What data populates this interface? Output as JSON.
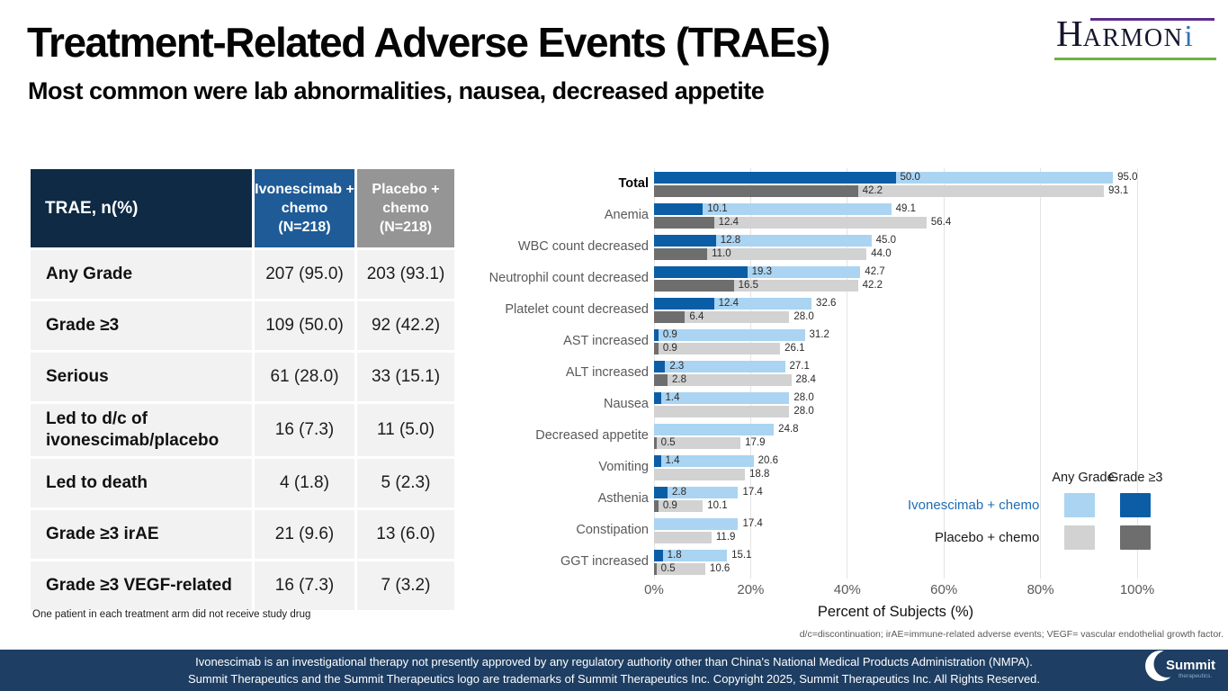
{
  "header": {
    "title": "Treatment-Related Adverse Events (TRAEs)",
    "subtitle": "Most common were lab abnormalities, nausea, decreased appetite",
    "harmoni_logo": {
      "h": "H",
      "armon": "ARMON",
      "i": "i",
      "purple": "#5b2d8e",
      "green": "#6cb33f",
      "i_color": "#2e74b5"
    }
  },
  "table": {
    "header": {
      "col0": "TRAE, n(%)",
      "col1": "Ivonescimab +\nchemo\n(N=218)",
      "col2": "Placebo +\nchemo\n(N=218)"
    },
    "rows": [
      {
        "label": "Any Grade",
        "ivonescimab": "207 (95.0)",
        "placebo": "203 (93.1)"
      },
      {
        "label": "Grade ≥3",
        "ivonescimab": "109 (50.0)",
        "placebo": "92 (42.2)"
      },
      {
        "label": "Serious",
        "ivonescimab": "61 (28.0)",
        "placebo": "33 (15.1)"
      },
      {
        "label": "Led to d/c of ivonescimab/placebo",
        "ivonescimab": "16 (7.3)",
        "placebo": "11 (5.0)"
      },
      {
        "label": "Led to death",
        "ivonescimab": "4 (1.8)",
        "placebo": "5 (2.3)"
      },
      {
        "label": "Grade ≥3 irAE",
        "ivonescimab": "21 (9.6)",
        "placebo": "13 (6.0)"
      },
      {
        "label": "Grade ≥3 VEGF-related",
        "ivonescimab": "16 (7.3)",
        "placebo": "7 (3.2)"
      }
    ],
    "footnote": "One patient in each treatment arm did not receive study drug"
  },
  "chart_data": {
    "type": "bar",
    "orientation": "horizontal",
    "xlabel": "Percent of Subjects (%)",
    "xlim": [
      0,
      100
    ],
    "x_ticks": [
      "0%",
      "20%",
      "40%",
      "60%",
      "80%",
      "100%"
    ],
    "grid": true,
    "categories": [
      "Total",
      "Anemia",
      "WBC count decreased",
      "Neutrophil count decreased",
      "Platelet count decreased",
      "AST increased",
      "ALT increased",
      "Nausea",
      "Decreased appetite",
      "Vomiting",
      "Asthenia",
      "Constipation",
      "GGT increased"
    ],
    "series": [
      {
        "name": "Ivonescimab + chemo — Any Grade",
        "color": "#aad4f2",
        "values": [
          95.0,
          49.1,
          45.0,
          42.7,
          32.6,
          31.2,
          27.1,
          28.0,
          24.8,
          20.6,
          17.4,
          17.4,
          15.1
        ]
      },
      {
        "name": "Ivonescimab + chemo — Grade ≥3",
        "color": "#0b5ea6",
        "values": [
          50.0,
          10.1,
          12.8,
          19.3,
          12.4,
          0.9,
          2.3,
          1.4,
          null,
          1.4,
          2.8,
          null,
          1.8
        ]
      },
      {
        "name": "Placebo + chemo — Any Grade",
        "color": "#d2d2d2",
        "values": [
          93.1,
          56.4,
          44.0,
          42.2,
          28.0,
          26.1,
          28.4,
          28.0,
          17.9,
          18.8,
          10.1,
          11.9,
          10.6
        ]
      },
      {
        "name": "Placebo + chemo — Grade ≥3",
        "color": "#6e6e6e",
        "values": [
          42.2,
          12.4,
          11.0,
          16.5,
          6.4,
          0.9,
          2.8,
          null,
          0.5,
          null,
          0.9,
          null,
          0.5
        ]
      }
    ],
    "legend": {
      "position": "right",
      "col_headers": [
        "Any Grade",
        "Grade ≥3"
      ],
      "rows": [
        {
          "label": "Ivonescimab + chemo",
          "label_color": "#1f6cb4",
          "any_color": "#aad4f2",
          "grade3_color": "#0b5ea6"
        },
        {
          "label": "Placebo + chemo",
          "label_color": "#1a1a1a",
          "any_color": "#d2d2d2",
          "grade3_color": "#6e6e6e"
        }
      ]
    },
    "footnote": "d/c=discontinuation; irAE=immune-related adverse events; VEGF= vascular endothelial growth factor."
  },
  "footer": {
    "background": "#1e3e63",
    "line1": "Ivonescimab is an investigational therapy not presently approved by any regulatory authority other than China's National Medical Products Administration (NMPA).",
    "line2": "Summit Therapeutics and the Summit Therapeutics logo are trademarks of Summit Therapeutics Inc. Copyright 2025, Summit Therapeutics Inc. All Rights Reserved.",
    "summit_logo": {
      "name": "Summit",
      "sub": "therapeutics."
    }
  }
}
